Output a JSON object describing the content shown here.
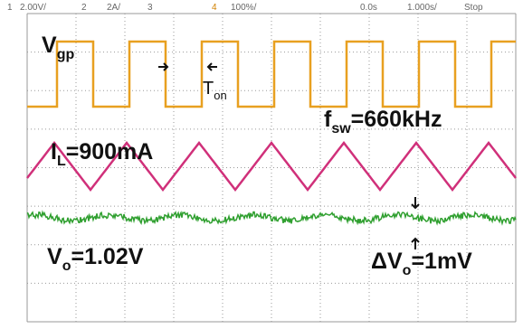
{
  "header": {
    "ch1_number": "1",
    "ch1_scale": "2.00V/",
    "ch2_number": "2",
    "ch2_scale": "2A/",
    "ch3_number": "3",
    "ch4_number": "4",
    "ch4_scale": "100%/",
    "time_offset": "0.0s",
    "time_scale": "1.000s/",
    "status": "Stop"
  },
  "labels": {
    "vgp": {
      "main": "V",
      "sub": "gp"
    },
    "ton": {
      "main": "T",
      "sub": "on"
    },
    "fsw": {
      "main": "f",
      "sub": "sw",
      "rest": "=660kHz"
    },
    "il": {
      "main": "I",
      "sub": "L",
      "rest": "=900mA"
    },
    "vo": {
      "main": "V",
      "sub": "o",
      "rest": "=1.02V"
    },
    "dvo": {
      "main": "ΔV",
      "sub": "o",
      "rest": "=1mV"
    }
  }
}
